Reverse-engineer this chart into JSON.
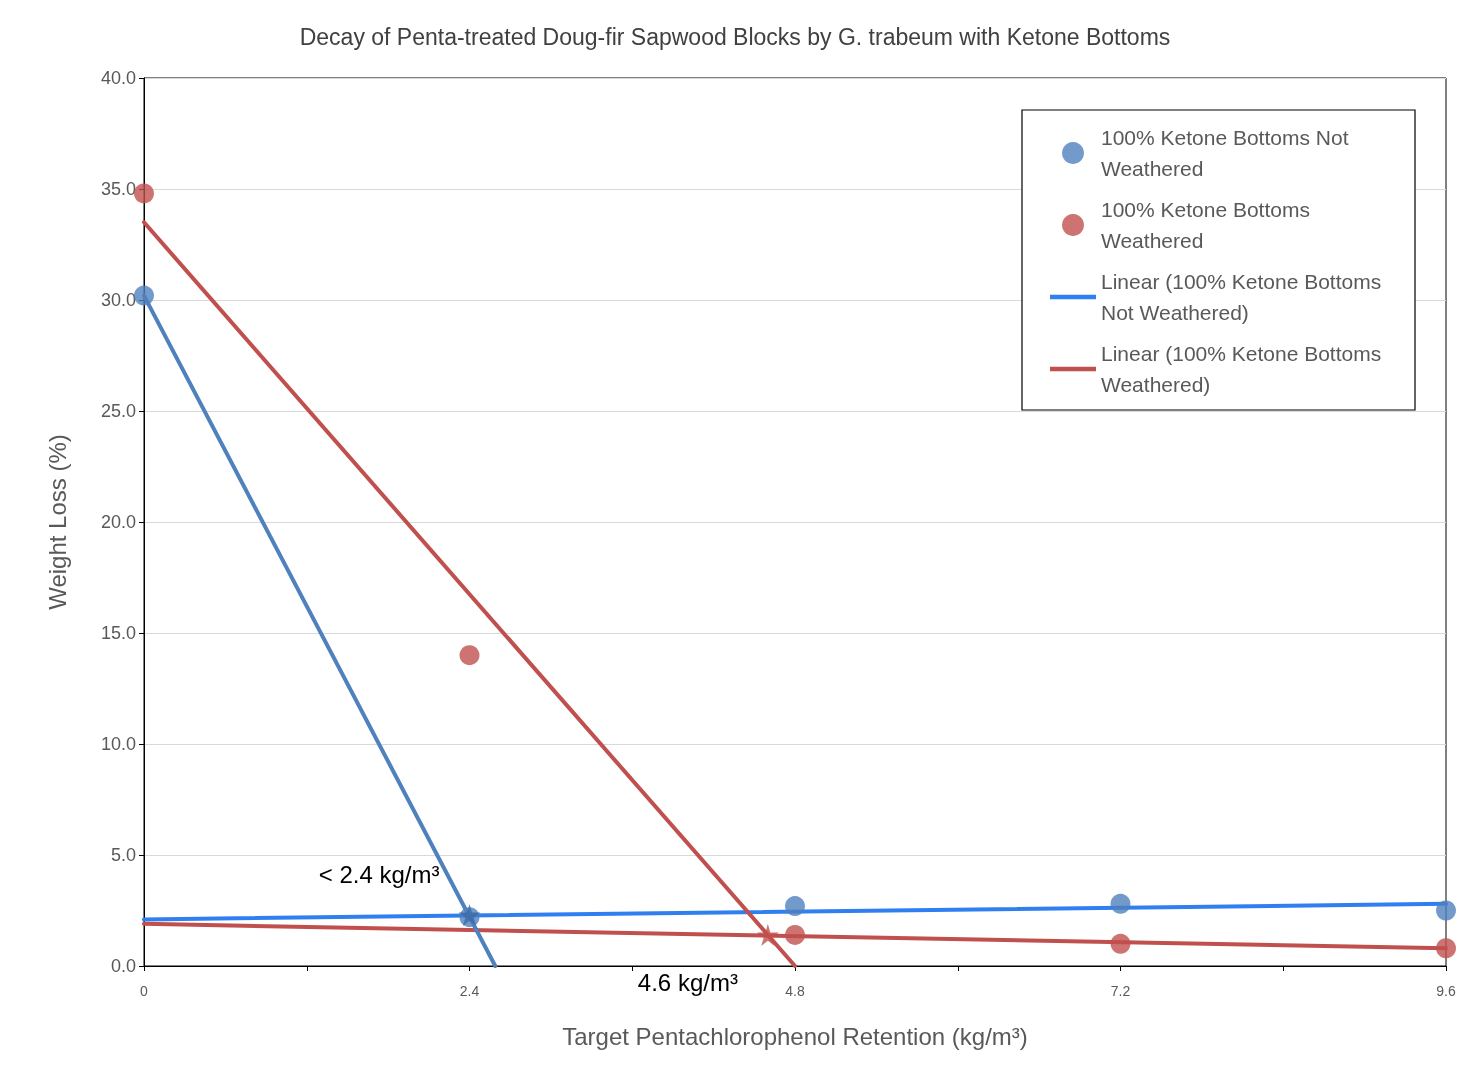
{
  "chart_data": {
    "type": "scatter",
    "title": "Decay of Penta-treated Doug-fir Sapwood Blocks by G. trabeum with Ketone Bottoms",
    "xlabel": "Target Pentachlorophenol Retention (kg/m³)",
    "ylabel": "Weight Loss (%)",
    "xlim": [
      0,
      9.6
    ],
    "xticks": [
      0,
      {
        "value": 1.2,
        "label": null
      },
      2.4,
      {
        "value": 3.6,
        "label": null
      },
      4.8,
      {
        "value": 6,
        "label": null
      },
      7.2,
      {
        "value": 8.4,
        "label": null
      },
      9.6
    ],
    "ylim": [
      0,
      40
    ],
    "yticks": [
      {
        "value": 0,
        "label": "0.0"
      },
      {
        "value": 5,
        "label": "5.0"
      },
      {
        "value": 10,
        "label": "10.0"
      },
      {
        "value": 15,
        "label": "15.0"
      },
      {
        "value": 20,
        "label": "20.0"
      },
      {
        "value": 25,
        "label": "25.0"
      },
      {
        "value": 30,
        "label": "30.0"
      },
      {
        "value": 35,
        "label": "35.0"
      },
      {
        "value": 40,
        "label": "40.0"
      }
    ],
    "grid": "y",
    "legend": "top right",
    "marker": "circle",
    "series": [
      {
        "name": "100% Ketone Bottoms Not Weathered",
        "color": "#4f81bd",
        "x": [
          0,
          2.4,
          4.8,
          7.2,
          9.6
        ],
        "values": [
          30.2,
          2.2,
          2.7,
          2.8,
          2.5
        ]
      },
      {
        "name": "100% Ketone Bottoms Weathered",
        "color": "#c0504d",
        "x": [
          0,
          2.4,
          4.8,
          7.2,
          9.6
        ],
        "values": [
          34.8,
          14.0,
          1.4,
          1.0,
          0.8
        ]
      },
      {
        "name": "Linear (100% Ketone Bottoms Not Weathered)",
        "type": "line",
        "marker": "none",
        "color": "#2f7ff0",
        "x": [
          0,
          9.6
        ],
        "values": [
          2.1,
          2.8
        ]
      },
      {
        "name": "Linear (100% Ketone Bottoms Weathered)",
        "type": "line",
        "marker": "none",
        "color": "#c0504d",
        "x": [
          0,
          9.6
        ],
        "values": [
          1.9,
          0.8
        ]
      },
      {
        "type": "line",
        "marker": "none",
        "color": "#4f81bd",
        "x": [
          0,
          2.59
        ],
        "values": [
          30.2,
          0
        ]
      },
      {
        "type": "line",
        "marker": "none",
        "color": "#c0504d",
        "x": [
          0,
          4.8
        ],
        "values": [
          33.5,
          0
        ]
      },
      {
        "marker": "star",
        "color": "#3d6aa8",
        "x": [
          2.4
        ],
        "values": [
          2.3
        ]
      },
      {
        "marker": "star",
        "color": "#c0504d",
        "x": [
          4.6
        ],
        "values": [
          1.4
        ]
      }
    ],
    "annotations": [
      {
        "text": "< 2.4 kg/m³",
        "x": 2.4,
        "y": 2.3
      },
      {
        "text": "4.6 kg/m³",
        "x": 4.6,
        "y": 1.4
      }
    ]
  }
}
